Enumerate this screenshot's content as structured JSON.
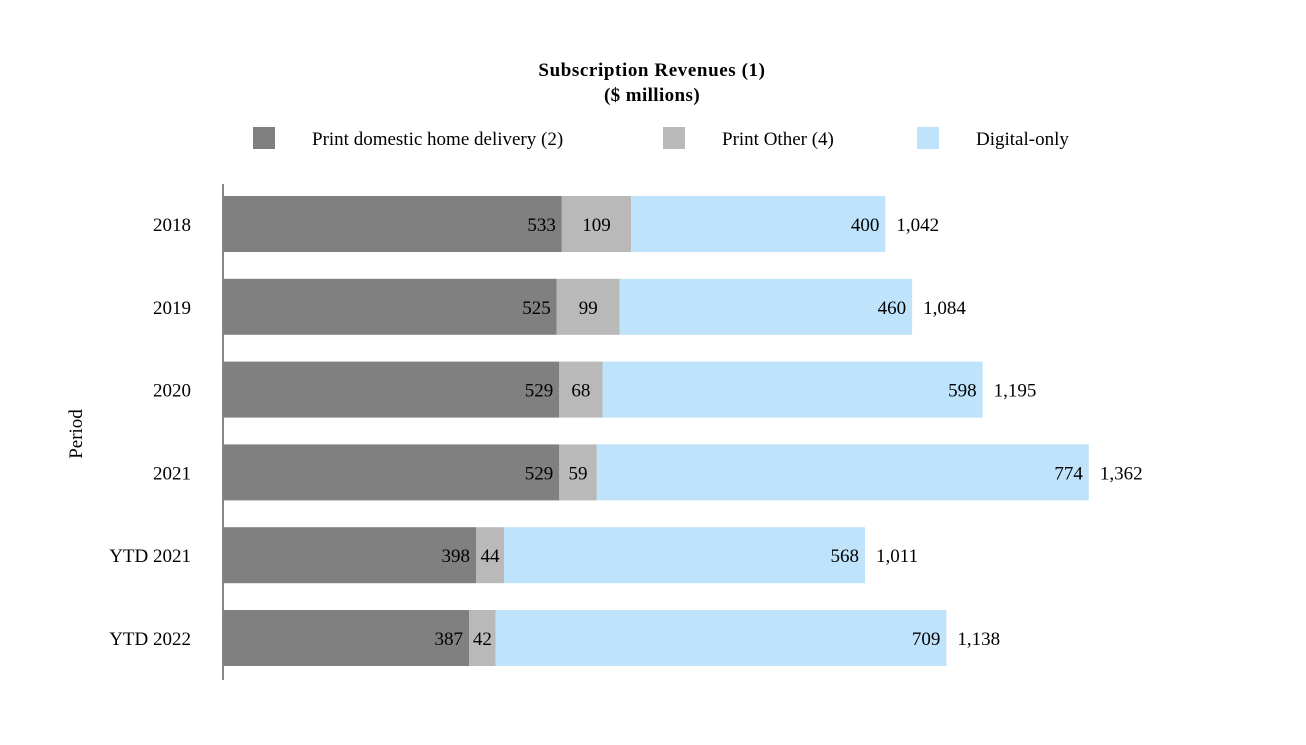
{
  "chart_data": {
    "type": "bar",
    "orientation": "horizontal",
    "stacked": true,
    "title": "Subscription Revenues (1)",
    "subtitle": "($ millions)",
    "xlabel": "",
    "ylabel": "Period",
    "xlim": [
      0,
      1400
    ],
    "grid": false,
    "legend_position": "top",
    "categories": [
      "2018",
      "2019",
      "2020",
      "2021",
      "YTD 2021",
      "YTD 2022"
    ],
    "series": [
      {
        "name": "Print domestic home delivery (2)",
        "color": "#808080",
        "values": [
          533,
          525,
          529,
          529,
          398,
          387
        ]
      },
      {
        "name": "Print Other (4)",
        "color": "#b9b9b9",
        "values": [
          109,
          99,
          68,
          59,
          44,
          42
        ]
      },
      {
        "name": "Digital-only",
        "color": "#bfe3fb",
        "values": [
          400,
          460,
          598,
          774,
          568,
          709
        ]
      }
    ],
    "segment_labels": [
      [
        "533",
        "525",
        "529",
        "529",
        "398",
        "387"
      ],
      [
        "109",
        "99",
        "68",
        "59",
        "44",
        "42"
      ],
      [
        "400",
        "460",
        "598",
        "774",
        "568",
        "709"
      ]
    ],
    "totals": [
      1042,
      1084,
      1195,
      1362,
      1011,
      1138
    ],
    "total_labels": [
      "1,042",
      "1,084",
      "1,195",
      "1,362",
      "1,011",
      "1,138"
    ]
  }
}
